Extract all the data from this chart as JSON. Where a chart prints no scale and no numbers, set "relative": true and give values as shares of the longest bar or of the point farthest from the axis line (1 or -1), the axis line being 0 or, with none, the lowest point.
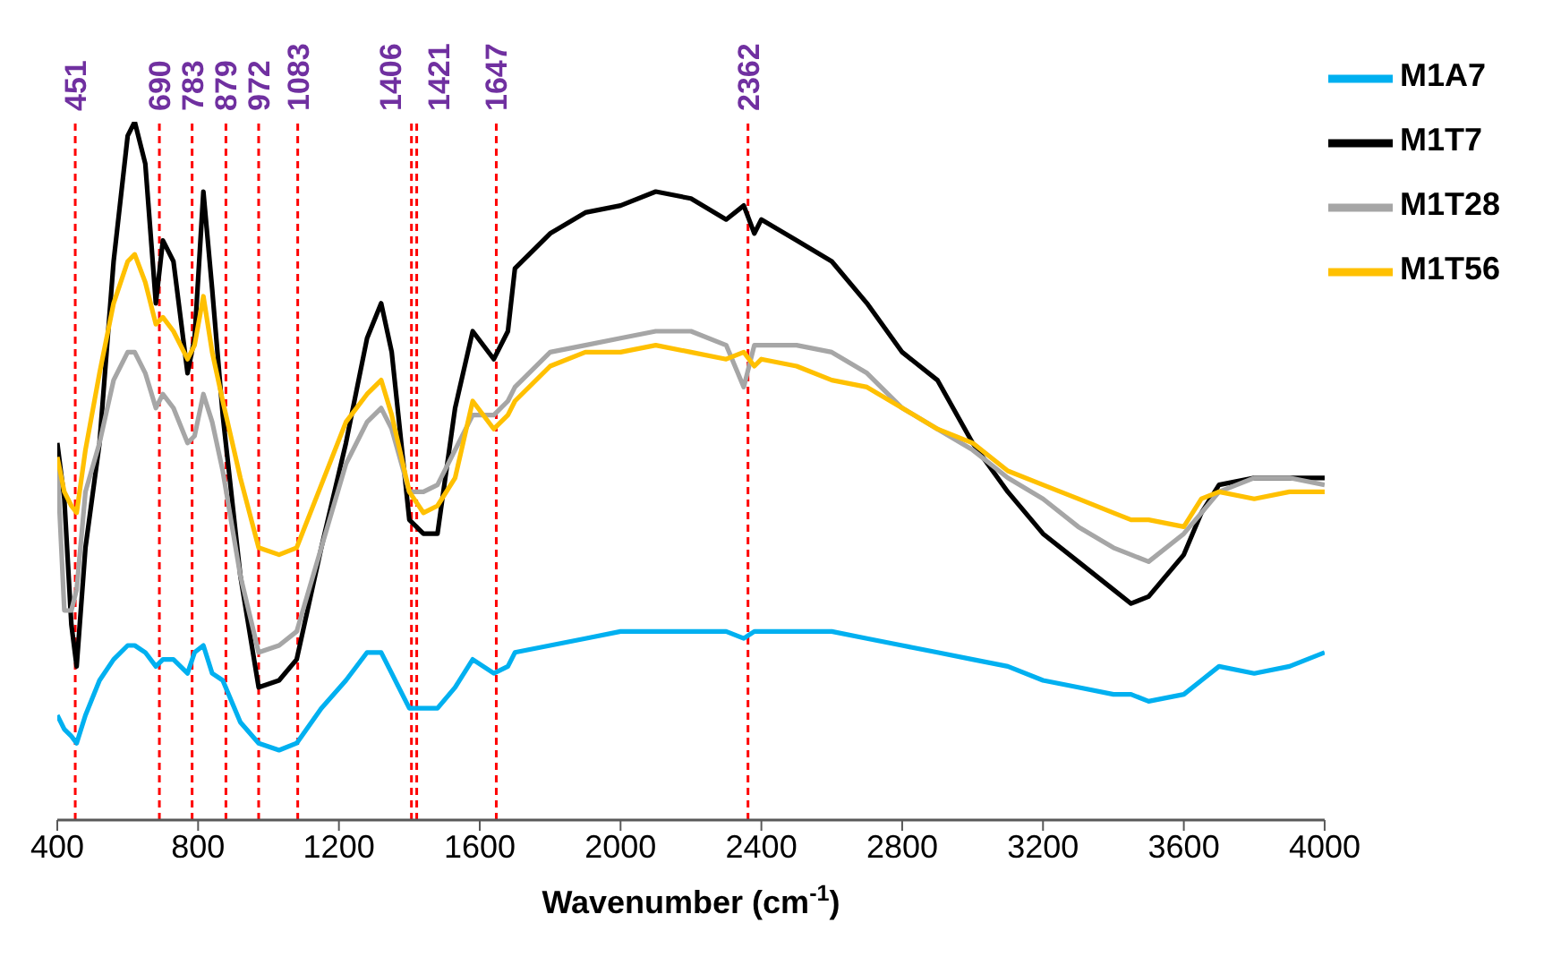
{
  "chart_data": {
    "type": "line",
    "xlabel": "Wavenumber (cm$^{-1}$)",
    "relative": true,
    "xlim": [
      400,
      4000
    ],
    "xticks": [
      400,
      800,
      1200,
      1600,
      2000,
      2400,
      2800,
      3200,
      3600,
      4000
    ],
    "grid": false,
    "legend": "top right",
    "marker": "none",
    "line_style": "solid",
    "x": [
      400,
      420,
      440,
      455,
      480,
      520,
      560,
      600,
      620,
      650,
      680,
      700,
      730,
      770,
      790,
      815,
      840,
      870,
      920,
      972,
      1030,
      1080,
      1150,
      1220,
      1280,
      1320,
      1350,
      1400,
      1440,
      1480,
      1530,
      1580,
      1640,
      1680,
      1700,
      1800,
      1900,
      2000,
      2100,
      2200,
      2300,
      2350,
      2380,
      2400,
      2500,
      2600,
      2700,
      2800,
      2900,
      3000,
      3100,
      3200,
      3300,
      3400,
      3450,
      3500,
      3600,
      3650,
      3700,
      3800,
      3900,
      4000
    ],
    "series": [
      {
        "name": "M1A7",
        "color": "#00b0f0",
        "values": [
          0.15,
          0.13,
          0.12,
          0.11,
          0.15,
          0.2,
          0.23,
          0.25,
          0.25,
          0.24,
          0.22,
          0.23,
          0.23,
          0.21,
          0.24,
          0.25,
          0.21,
          0.2,
          0.14,
          0.11,
          0.1,
          0.11,
          0.16,
          0.2,
          0.24,
          0.24,
          0.21,
          0.16,
          0.16,
          0.16,
          0.19,
          0.23,
          0.21,
          0.22,
          0.24,
          0.25,
          0.26,
          0.27,
          0.27,
          0.27,
          0.27,
          0.26,
          0.27,
          0.27,
          0.27,
          0.27,
          0.26,
          0.25,
          0.24,
          0.23,
          0.22,
          0.2,
          0.19,
          0.18,
          0.18,
          0.17,
          0.18,
          0.2,
          0.22,
          0.21,
          0.22,
          0.24
        ]
      },
      {
        "name": "M1T7",
        "color": "#000000",
        "values": [
          0.54,
          0.46,
          0.28,
          0.22,
          0.39,
          0.54,
          0.8,
          0.98,
          1,
          0.94,
          0.74,
          0.83,
          0.8,
          0.64,
          0.69,
          0.9,
          0.76,
          0.58,
          0.35,
          0.19,
          0.2,
          0.23,
          0.39,
          0.54,
          0.69,
          0.74,
          0.67,
          0.43,
          0.41,
          0.41,
          0.59,
          0.7,
          0.66,
          0.7,
          0.79,
          0.84,
          0.87,
          0.88,
          0.9,
          0.89,
          0.86,
          0.88,
          0.84,
          0.86,
          0.83,
          0.8,
          0.74,
          0.67,
          0.63,
          0.54,
          0.47,
          0.41,
          0.37,
          0.33,
          0.31,
          0.32,
          0.38,
          0.44,
          0.48,
          0.49,
          0.49,
          0.49
        ]
      },
      {
        "name": "M1T28",
        "color": "#a6a6a6",
        "values": [
          0.51,
          0.3,
          0.3,
          0.33,
          0.47,
          0.54,
          0.63,
          0.67,
          0.67,
          0.64,
          0.59,
          0.61,
          0.59,
          0.54,
          0.55,
          0.61,
          0.57,
          0.5,
          0.35,
          0.24,
          0.25,
          0.27,
          0.39,
          0.51,
          0.57,
          0.59,
          0.56,
          0.47,
          0.47,
          0.48,
          0.53,
          0.58,
          0.58,
          0.6,
          0.62,
          0.67,
          0.68,
          0.69,
          0.7,
          0.7,
          0.68,
          0.62,
          0.68,
          0.68,
          0.68,
          0.67,
          0.64,
          0.59,
          0.56,
          0.53,
          0.49,
          0.46,
          0.42,
          0.39,
          0.38,
          0.37,
          0.41,
          0.44,
          0.47,
          0.49,
          0.49,
          0.48
        ]
      },
      {
        "name": "M1T56",
        "color": "#ffc000",
        "values": [
          0.52,
          0.47,
          0.45,
          0.44,
          0.53,
          0.64,
          0.74,
          0.8,
          0.81,
          0.77,
          0.71,
          0.72,
          0.7,
          0.66,
          0.68,
          0.75,
          0.67,
          0.6,
          0.49,
          0.39,
          0.38,
          0.39,
          0.48,
          0.57,
          0.61,
          0.63,
          0.58,
          0.47,
          0.44,
          0.45,
          0.49,
          0.6,
          0.56,
          0.58,
          0.6,
          0.65,
          0.67,
          0.67,
          0.68,
          0.67,
          0.66,
          0.67,
          0.65,
          0.66,
          0.65,
          0.63,
          0.62,
          0.59,
          0.56,
          0.54,
          0.5,
          0.48,
          0.46,
          0.44,
          0.43,
          0.43,
          0.42,
          0.46,
          0.47,
          0.46,
          0.47,
          0.47
        ]
      }
    ],
    "ref_lines": [
      {
        "axis": "x",
        "value": 451,
        "label": "451",
        "color": "#ff0000",
        "line_style": "dashed"
      },
      {
        "axis": "x",
        "value": 690,
        "label": "690",
        "color": "#ff0000",
        "line_style": "dashed"
      },
      {
        "axis": "x",
        "value": 783,
        "label": "783",
        "color": "#ff0000",
        "line_style": "dashed"
      },
      {
        "axis": "x",
        "value": 879,
        "label": "879",
        "color": "#ff0000",
        "line_style": "dashed"
      },
      {
        "axis": "x",
        "value": 972,
        "label": "972",
        "color": "#ff0000",
        "line_style": "dashed"
      },
      {
        "axis": "x",
        "value": 1083,
        "label": "1083",
        "color": "#ff0000",
        "line_style": "dashed"
      },
      {
        "axis": "x",
        "value": 1406,
        "label": "1406",
        "color": "#ff0000",
        "line_style": "dashed"
      },
      {
        "axis": "x",
        "value": 1421,
        "label": "1421",
        "color": "#ff0000",
        "line_style": "dashed"
      },
      {
        "axis": "x",
        "value": 1647,
        "label": "1647",
        "color": "#ff0000",
        "line_style": "dashed"
      },
      {
        "axis": "x",
        "value": 2362,
        "label": "2362",
        "color": "#ff0000",
        "line_style": "dashed"
      }
    ]
  }
}
